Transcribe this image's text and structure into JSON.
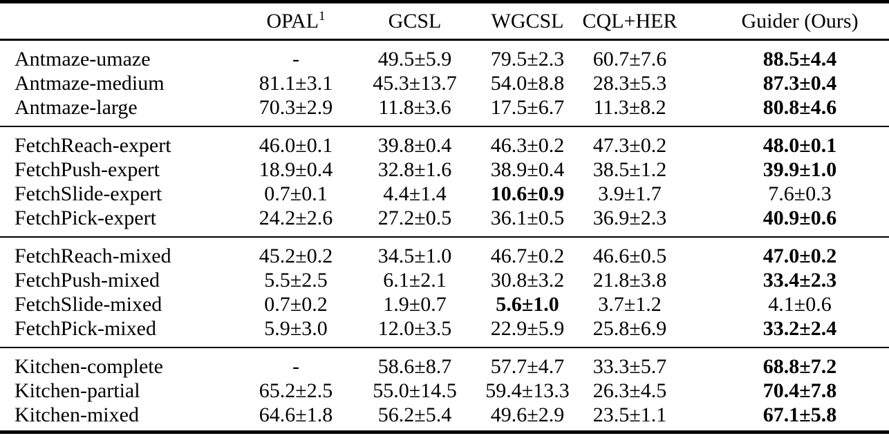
{
  "colors": {
    "background": "#ffffff",
    "text": "#000000",
    "rule": "#000000"
  },
  "table": {
    "headers": [
      {
        "text": "OPAL",
        "sup": "1"
      },
      {
        "text": "GCSL"
      },
      {
        "text": "WGCSL"
      },
      {
        "text": "CQL+HER"
      },
      {
        "text": "Guider (Ours)"
      }
    ],
    "sections": [
      {
        "rows": [
          {
            "label": "Antmaze-umaze",
            "values": [
              "-",
              "49.5±5.9",
              "79.5±2.3",
              "60.7±7.6",
              "88.5±4.4"
            ],
            "bold": [
              4
            ]
          },
          {
            "label": "Antmaze-medium",
            "values": [
              "81.1±3.1",
              "45.3±13.7",
              "54.0±8.8",
              "28.3±5.3",
              "87.3±0.4"
            ],
            "bold": [
              4
            ]
          },
          {
            "label": "Antmaze-large",
            "values": [
              "70.3±2.9",
              "11.8±3.6",
              "17.5±6.7",
              "11.3±8.2",
              "80.8±4.6"
            ],
            "bold": [
              4
            ]
          }
        ]
      },
      {
        "rows": [
          {
            "label": "FetchReach-expert",
            "values": [
              "46.0±0.1",
              "39.8±0.4",
              "46.3±0.2",
              "47.3±0.2",
              "48.0±0.1"
            ],
            "bold": [
              4
            ]
          },
          {
            "label": "FetchPush-expert",
            "values": [
              "18.9±0.4",
              "32.8±1.6",
              "38.9±0.4",
              "38.5±1.2",
              "39.9±1.0"
            ],
            "bold": [
              4
            ]
          },
          {
            "label": "FetchSlide-expert",
            "values": [
              "0.7±0.1",
              "4.4±1.4",
              "10.6±0.9",
              "3.9±1.7",
              "7.6±0.3"
            ],
            "bold": [
              2
            ]
          },
          {
            "label": "FetchPick-expert",
            "values": [
              "24.2±2.6",
              "27.2±0.5",
              "36.1±0.5",
              "36.9±2.3",
              "40.9±0.6"
            ],
            "bold": [
              4
            ]
          }
        ]
      },
      {
        "rows": [
          {
            "label": "FetchReach-mixed",
            "values": [
              "45.2±0.2",
              "34.5±1.0",
              "46.7±0.2",
              "46.6±0.5",
              "47.0±0.2"
            ],
            "bold": [
              4
            ]
          },
          {
            "label": "FetchPush-mixed",
            "values": [
              "5.5±2.5",
              "6.1±2.1",
              "30.8±3.2",
              "21.8±3.8",
              "33.4±2.3"
            ],
            "bold": [
              4
            ]
          },
          {
            "label": "FetchSlide-mixed",
            "values": [
              "0.7±0.2",
              "1.9±0.7",
              "5.6±1.0",
              "3.7±1.2",
              "4.1±0.6"
            ],
            "bold": [
              2
            ]
          },
          {
            "label": "FetchPick-mixed",
            "values": [
              "5.9±3.0",
              "12.0±3.5",
              "22.9±5.9",
              "25.8±6.9",
              "33.2±2.4"
            ],
            "bold": [
              4
            ]
          }
        ]
      },
      {
        "rows": [
          {
            "label": "Kitchen-complete",
            "values": [
              "-",
              "58.6±8.7",
              "57.7±4.7",
              "33.3±5.7",
              "68.8±7.2"
            ],
            "bold": [
              4
            ]
          },
          {
            "label": "Kitchen-partial",
            "values": [
              "65.2±2.5",
              "55.0±14.5",
              "59.4±13.3",
              "26.3±4.5",
              "70.4±7.8"
            ],
            "bold": [
              4
            ]
          },
          {
            "label": "Kitchen-mixed",
            "values": [
              "64.6±1.8",
              "56.2±5.4",
              "49.6±2.9",
              "23.5±1.1",
              "67.1±5.8"
            ],
            "bold": [
              4
            ]
          }
        ]
      }
    ]
  }
}
